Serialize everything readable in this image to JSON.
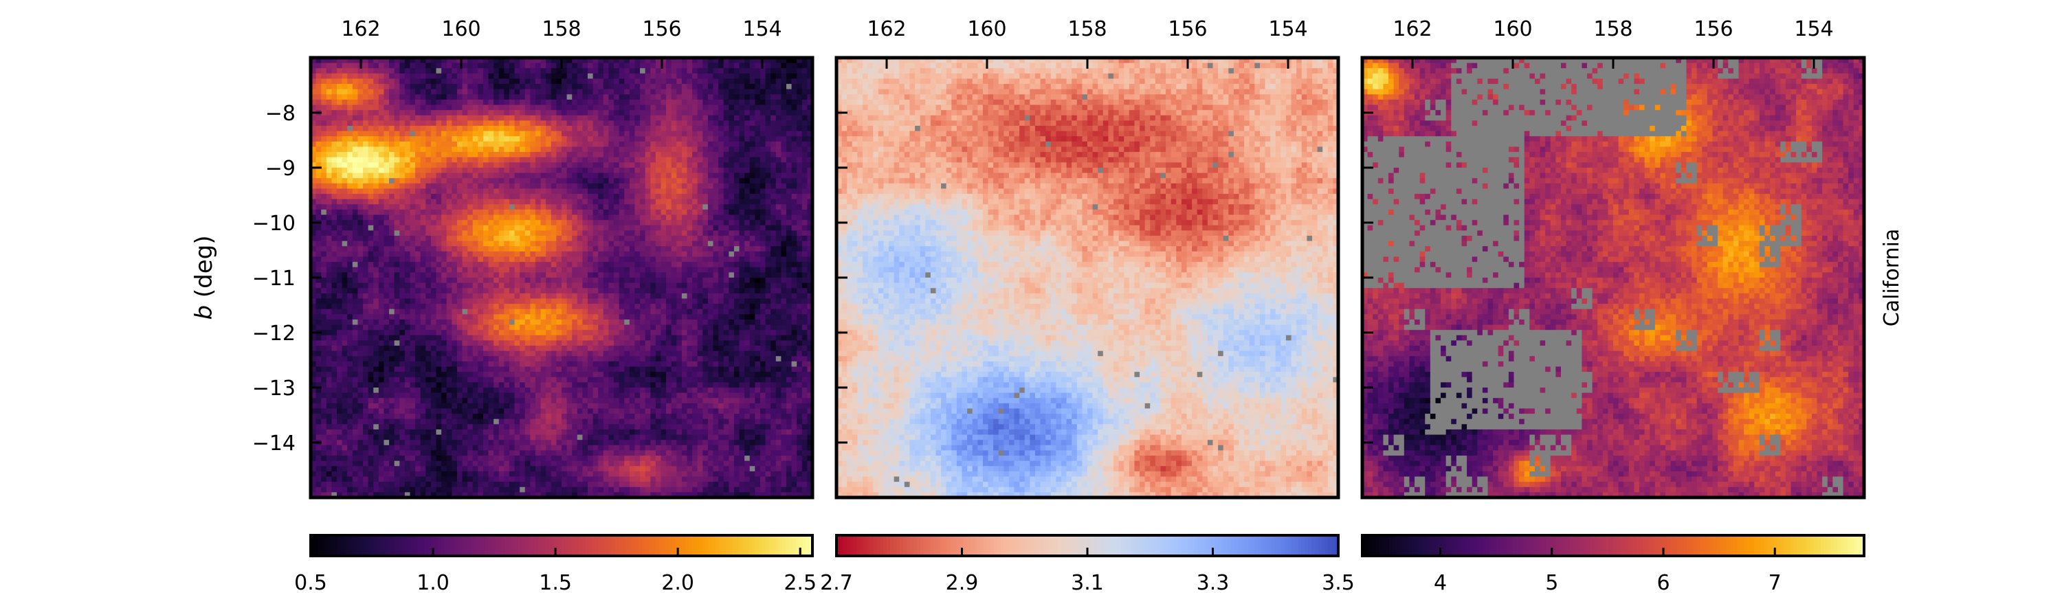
{
  "chart_data": [
    {
      "type": "heatmap",
      "panel": "left",
      "x_ticks": [
        "162",
        "160",
        "158",
        "156",
        "154"
      ],
      "x_tick_values": [
        162,
        160,
        158,
        156,
        154
      ],
      "xlim": [
        163.0,
        153.0
      ],
      "ylabel_prefix": "b",
      "ylabel_suffix": " (deg)",
      "y_ticks": [
        "−8",
        "−9",
        "−10",
        "−11",
        "−12",
        "−13",
        "−14"
      ],
      "y_tick_values": [
        -8,
        -9,
        -10,
        -11,
        -12,
        -13,
        -14
      ],
      "ylim": [
        -15.0,
        -7.0
      ],
      "colormap": "inferno",
      "colorbar": {
        "ticks": [
          "0.5",
          "1.0",
          "1.5",
          "2.0",
          "2.5"
        ],
        "tick_values": [
          0.5,
          1.0,
          1.5,
          2.0,
          2.5
        ],
        "range": [
          0.5,
          2.55
        ]
      },
      "masked_color": "#808080",
      "features": [
        {
          "kind": "blob",
          "l": 162.0,
          "b": -8.9,
          "width_l": 1.6,
          "width_b": 0.7,
          "value": 2.6
        },
        {
          "kind": "blob",
          "l": 159.3,
          "b": -8.5,
          "width_l": 1.8,
          "width_b": 0.5,
          "value": 2.3
        },
        {
          "kind": "blob",
          "l": 159.0,
          "b": -10.2,
          "width_l": 1.6,
          "width_b": 0.7,
          "value": 2.2
        },
        {
          "kind": "blob",
          "l": 158.5,
          "b": -11.8,
          "width_l": 1.6,
          "width_b": 0.6,
          "value": 2.1
        },
        {
          "kind": "blob",
          "l": 162.4,
          "b": -7.6,
          "width_l": 1.0,
          "width_b": 0.4,
          "value": 2.1
        },
        {
          "kind": "blob",
          "l": 155.8,
          "b": -9.3,
          "width_l": 0.8,
          "width_b": 1.4,
          "value": 1.7
        },
        {
          "kind": "blob",
          "l": 156.5,
          "b": -14.5,
          "width_l": 0.9,
          "width_b": 0.4,
          "value": 1.6
        },
        {
          "kind": "blob",
          "l": 158.2,
          "b": -13.5,
          "width_l": 0.6,
          "width_b": 0.8,
          "value": 1.4
        }
      ],
      "background_value": 0.85
    },
    {
      "type": "heatmap",
      "panel": "middle",
      "x_ticks": [
        "162",
        "160",
        "158",
        "156",
        "154"
      ],
      "x_tick_values": [
        162,
        160,
        158,
        156,
        154
      ],
      "xlim": [
        163.0,
        153.0
      ],
      "ylim": [
        -15.0,
        -7.0
      ],
      "colormap": "coolwarm_r",
      "colorbar": {
        "ticks": [
          "2.7",
          "2.9",
          "3.1",
          "3.3",
          "3.5"
        ],
        "tick_values": [
          2.7,
          2.9,
          3.1,
          3.3,
          3.5
        ],
        "range": [
          2.7,
          3.5
        ]
      },
      "masked_color": "#808080",
      "features": [
        {
          "kind": "blob",
          "l": 159.5,
          "b": -13.8,
          "width_l": 2.2,
          "width_b": 1.4,
          "value": 3.42
        },
        {
          "kind": "blob",
          "l": 161.5,
          "b": -10.8,
          "width_l": 1.4,
          "width_b": 1.2,
          "value": 3.25
        },
        {
          "kind": "blob",
          "l": 154.5,
          "b": -12.2,
          "width_l": 1.6,
          "width_b": 1.2,
          "value": 3.22
        },
        {
          "kind": "blob",
          "l": 158.0,
          "b": -8.4,
          "width_l": 3.0,
          "width_b": 1.0,
          "value": 2.78
        },
        {
          "kind": "blob",
          "l": 156.0,
          "b": -9.8,
          "width_l": 1.6,
          "width_b": 0.9,
          "value": 2.78
        },
        {
          "kind": "blob",
          "l": 156.5,
          "b": -14.4,
          "width_l": 1.0,
          "width_b": 0.5,
          "value": 2.8
        }
      ],
      "background_value": 3.0
    },
    {
      "type": "heatmap",
      "panel": "right",
      "x_ticks": [
        "162",
        "160",
        "158",
        "156",
        "154"
      ],
      "x_tick_values": [
        162,
        160,
        158,
        156,
        154
      ],
      "xlim": [
        163.0,
        153.0
      ],
      "ylim": [
        -15.0,
        -7.0
      ],
      "row_label": "California",
      "colormap": "inferno",
      "colorbar": {
        "ticks": [
          "4",
          "5",
          "6",
          "7"
        ],
        "tick_values": [
          4,
          5,
          6,
          7
        ],
        "range": [
          3.3,
          7.8
        ]
      },
      "masked_color": "#808080",
      "features": [
        {
          "kind": "blob",
          "l": 157.0,
          "b": -8.3,
          "width_l": 1.0,
          "width_b": 0.8,
          "value": 7.0
        },
        {
          "kind": "blob",
          "l": 155.5,
          "b": -10.5,
          "width_l": 1.2,
          "width_b": 1.4,
          "value": 6.8
        },
        {
          "kind": "blob",
          "l": 157.2,
          "b": -12.0,
          "width_l": 1.0,
          "width_b": 0.6,
          "value": 6.6
        },
        {
          "kind": "blob",
          "l": 154.8,
          "b": -13.5,
          "width_l": 1.0,
          "width_b": 0.8,
          "value": 6.8
        },
        {
          "kind": "blob",
          "l": 162.7,
          "b": -7.4,
          "width_l": 0.5,
          "width_b": 0.4,
          "value": 7.5
        },
        {
          "kind": "blob",
          "l": 159.7,
          "b": -14.5,
          "width_l": 0.4,
          "width_b": 0.3,
          "value": 7.4
        },
        {
          "kind": "blob",
          "l": 161.5,
          "b": -13.5,
          "width_l": 1.6,
          "width_b": 1.3,
          "value": 3.6
        }
      ],
      "background_value": 5.3,
      "masked_regions": [
        {
          "l_range": [
            161.2,
            156.5
          ],
          "b_range": [
            -8.4,
            -7.0
          ]
        },
        {
          "l_range": [
            163.0,
            159.8
          ],
          "b_range": [
            -11.2,
            -8.4
          ]
        },
        {
          "l_range": [
            161.6,
            158.6
          ],
          "b_range": [
            -13.8,
            -12.0
          ]
        }
      ]
    }
  ]
}
